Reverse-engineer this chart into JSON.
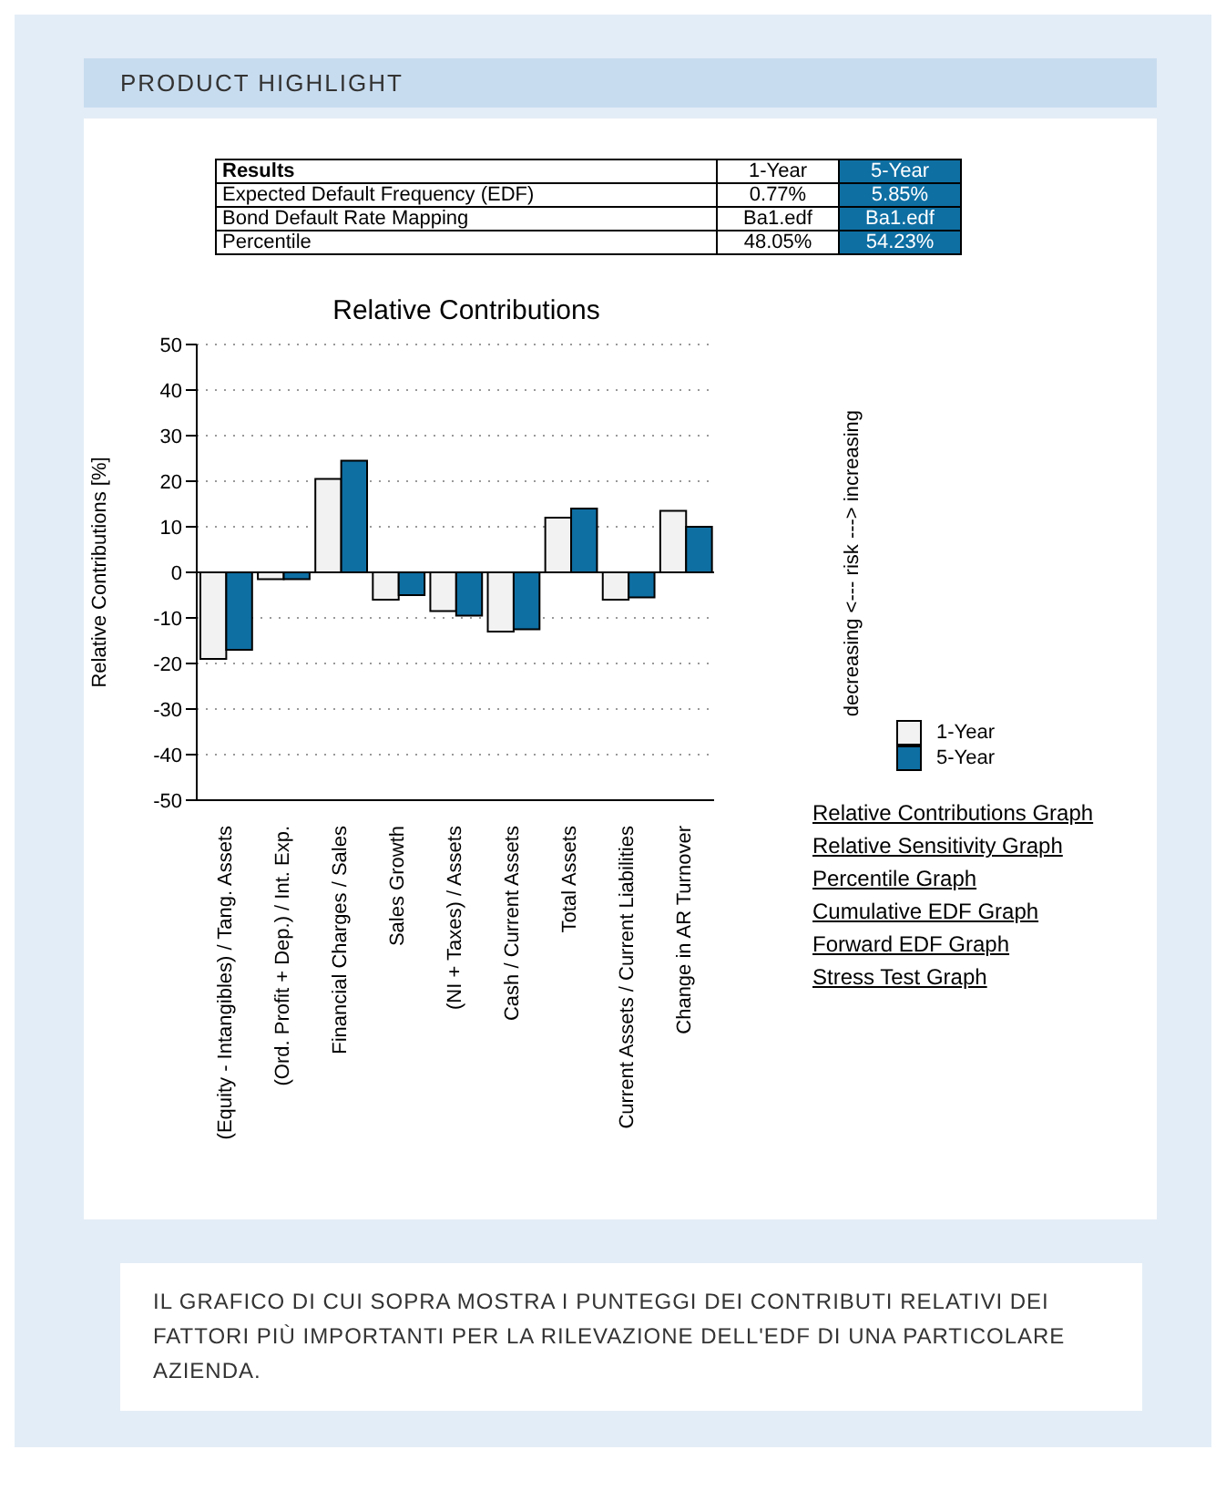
{
  "chart_data": {
    "type": "bar",
    "title": "Relative Contributions",
    "ylabel": "Relative Contributions [%]",
    "categories": [
      "(Equity - Intangibles) / Tang. Assets",
      "(Ord. Profit + Dep.) / Int. Exp.",
      "Financial Charges / Sales",
      "Sales Growth",
      "(NI + Taxes) / Assets",
      "Cash / Current Assets",
      "Total Assets",
      "Current Assets / Current Liabilities",
      "Change in AR Turnover"
    ],
    "series": [
      {
        "name": "1-Year",
        "color": "#f2f2f2",
        "values": [
          -19,
          -1.5,
          20.5,
          -6,
          -8.5,
          -13,
          12,
          -6,
          13.5
        ]
      },
      {
        "name": "5-Year",
        "color": "#0e6fa3",
        "values": [
          -17,
          -1.5,
          24.5,
          -5,
          -9.5,
          -12.5,
          14,
          -5.5,
          10
        ]
      }
    ],
    "ylim": [
      -50,
      50
    ],
    "yticks": [
      -50,
      -40,
      -30,
      -20,
      -10,
      0,
      10,
      20,
      30,
      40,
      50
    ],
    "grid": "y",
    "legend": "right",
    "annotations": [
      "PRODUCT HIGHLIGHT",
      "decreasing <--- risk ---> increasing",
      "Results",
      "1-Year",
      "5-Year",
      "Expected Default Frequency (EDF)",
      "0.77%",
      "5.85%",
      "Bond Default Rate Mapping",
      "Ba1.edf",
      "Ba1.edf",
      "Percentile",
      "48.05%",
      "54.23%",
      "Relative Contributions Graph",
      "Relative Sensitivity Graph",
      "Percentile Graph",
      "Cumulative EDF Graph",
      "Forward EDF Graph",
      "Stress Test Graph",
      "IL GRAFICO DI CUI SOPRA MOSTRA I PUNTEGGI DEI CONTRIBUTI RELATIVI DEI FATTORI PIÙ IMPORTANTI PER LA RILEVAZIONE DELL'EDF DI UNA PARTICOLARE AZIENDA."
    ]
  }
}
